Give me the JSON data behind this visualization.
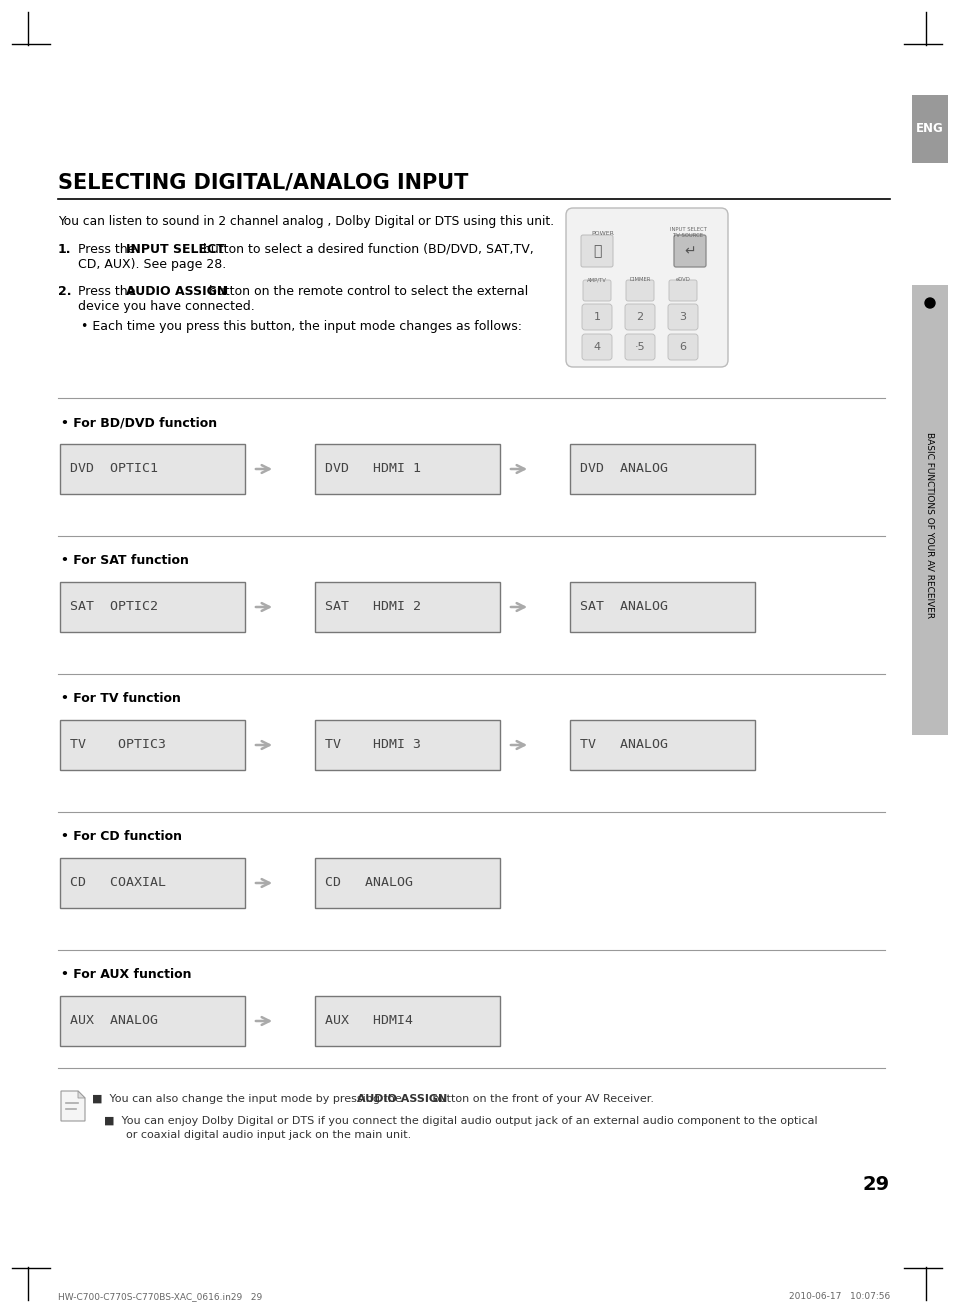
{
  "title": "SELECTING DIGITAL/ANALOG INPUT",
  "page_number": "29",
  "footer_left": "HW-C700-C770S-C770BS-XAC_0616.in29   29",
  "footer_right": "2010-06-17   10:07:56",
  "intro_text": "You can listen to sound in 2 channel analog , Dolby Digital or DTS using this unit.",
  "step1_pre": "Press the ",
  "step1_bold": "INPUT SELECT",
  "step1_post": " button to select a desired function (BD/DVD, SAT,TV,",
  "step1_line2": "CD, AUX). See page 28.",
  "step2_pre": "Press the ",
  "step2_bold": "AUDIO ASSIGN",
  "step2_post": " button on the remote control to select the external",
  "step2_line2": "device you have connected.",
  "bullet_text": "Each time you press this button, the input mode changes as follows:",
  "note1_pre": "You can also change the input mode by pressing the ",
  "note1_bold": "AUDIO ASSIGN",
  "note1_post": " button on the front of your AV Receiver.",
  "note2_line1": "You can enjoy Dolby Digital or DTS if you connect the digital audio output jack of an external audio component to the optical",
  "note2_line2": "or coaxial digital audio input jack on the main unit.",
  "sections": [
    {
      "label": "For BD/DVD function",
      "screens": [
        "DVD  OPTIC1",
        "DVD   HDMI 1",
        "DVD  ANALOG"
      ]
    },
    {
      "label": "For SAT function",
      "screens": [
        "SAT  OPTIC2",
        "SAT   HDMI 2",
        "SAT  ANALOG"
      ]
    },
    {
      "label": "For TV function",
      "screens": [
        "TV    OPTIC3",
        "TV    HDMI 3",
        "TV   ANALOG"
      ]
    },
    {
      "label": "For CD function",
      "screens": [
        "CD   COAXIAL",
        "CD   ANALOG"
      ]
    },
    {
      "label": "For AUX function",
      "screens": [
        "AUX  ANALOG",
        "AUX   HDMI4"
      ]
    }
  ],
  "sidebar_text": "BASIC FUNCTIONS OF YOUR AV RECEIVER",
  "eng_label": "ENG",
  "bg_color": "#ffffff",
  "screen_bg": "#e5e5e5",
  "screen_border": "#777777",
  "sidebar_bg": "#bbbbbb",
  "eng_bg": "#999999",
  "text_color": "#000000",
  "section_line_color": "#999999",
  "arrow_color": "#aaaaaa",
  "remote_bg": "#f2f2f2",
  "remote_border": "#bbbbbb",
  "btn_bg": "#e0e0e0",
  "btn_border": "#bbbbbb"
}
